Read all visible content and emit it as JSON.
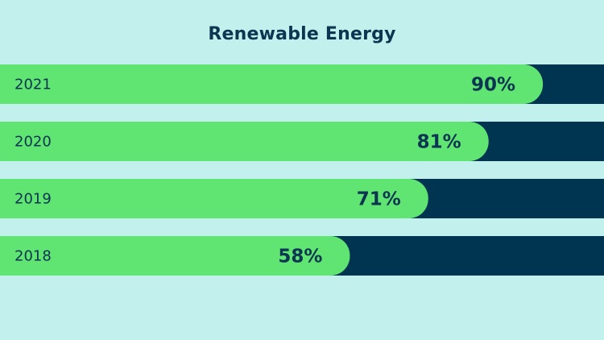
{
  "colors": {
    "background": "#c2f1ed",
    "track": "#003551",
    "bar": "#60e472",
    "text": "#0b3550"
  },
  "chart_data": {
    "type": "bar",
    "orientation": "horizontal",
    "title": "Renewable Energy",
    "categories": [
      "2021",
      "2020",
      "2019",
      "2018"
    ],
    "values": [
      90,
      81,
      71,
      58
    ],
    "value_labels": [
      "90%",
      "81%",
      "71%",
      "58%"
    ],
    "unit": "%",
    "xlim": [
      0,
      100
    ],
    "grid": false,
    "legend": "none"
  }
}
